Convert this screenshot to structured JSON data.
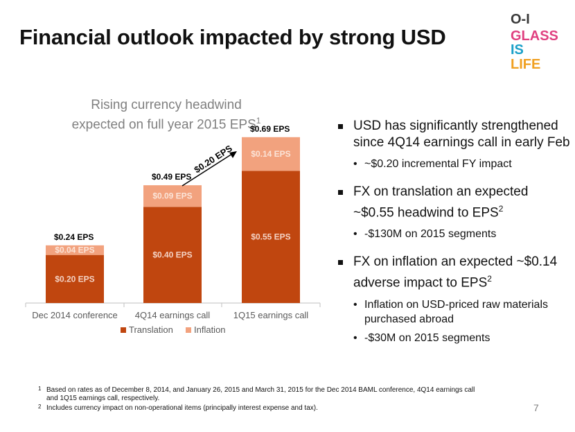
{
  "slide": {
    "title": "Financial outlook impacted by strong USD",
    "page_number": "7"
  },
  "logo": {
    "line1": "O-I",
    "line2": "GLASS",
    "line3": "IS",
    "line4": "LIFE"
  },
  "chart_title": {
    "line1": "Rising currency headwind",
    "line2": "expected on full year 2015 EPS",
    "sup": "1"
  },
  "chart_data": {
    "type": "bar",
    "stacked": true,
    "categories": [
      "Dec 2014 conference",
      "4Q14 earnings call",
      "1Q15 earnings call"
    ],
    "series": [
      {
        "name": "Translation",
        "values": [
          0.2,
          0.4,
          0.55
        ],
        "labels": [
          "$0.20 EPS",
          "$0.40 EPS",
          "$0.55 EPS"
        ],
        "color": "#c0460f"
      },
      {
        "name": "Inflation",
        "values": [
          0.04,
          0.09,
          0.14
        ],
        "labels": [
          "$0.04 EPS",
          "$0.09 EPS",
          "$0.14 EPS"
        ],
        "color": "#f2a27e"
      }
    ],
    "totals": [
      "$0.24 EPS",
      "$0.49 EPS",
      "$0.69 EPS"
    ],
    "annotation": "$0.20 EPS",
    "ylim": [
      0,
      0.75
    ],
    "legend_position": "bottom",
    "grid": false
  },
  "bullets": [
    {
      "text": "USD has significantly strengthened since 4Q14 earnings call in early Feb",
      "sup": "",
      "sub": [
        {
          "text": "~$0.20 incremental FY impact",
          "sup": ""
        }
      ]
    },
    {
      "text": "FX on translation an expected ~$0.55 headwind to EPS",
      "sup": "2",
      "sub": [
        {
          "text": "-$130M on 2015 segments",
          "sup": ""
        }
      ]
    },
    {
      "text": "FX on inflation an expected ~$0.14 adverse impact to EPS",
      "sup": "2",
      "sub": [
        {
          "text": "Inflation on USD-priced raw materials purchased abroad",
          "sup": ""
        },
        {
          "text": "-$30M on 2015 segments",
          "sup": ""
        }
      ]
    }
  ],
  "footnotes": [
    {
      "num": "1",
      "text": "Based on rates as of December 8, 2014, and January 26, 2015 and March 31, 2015 for the Dec 2014 BAML conference, 4Q14 earnings call and 1Q15 earnings call, respectively."
    },
    {
      "num": "2",
      "text": "Includes currency impact on non-operational items (principally interest expense and tax)."
    }
  ],
  "colors": {
    "translation": "#c0460f",
    "inflation": "#f2a27e",
    "title": "#111111",
    "muted": "#7f7f7f"
  }
}
